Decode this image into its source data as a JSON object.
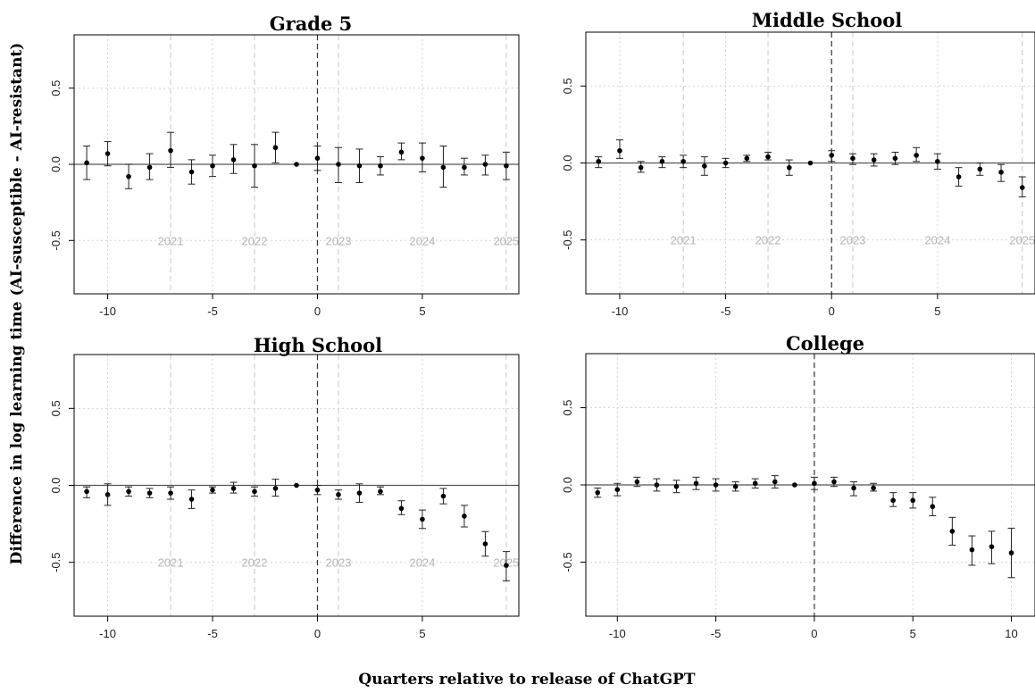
{
  "figure": {
    "ylabel": "Difference in log learning time (AI-susceptible - AI-resistant)",
    "xlabel": "Quarters relative to release of ChatGPT"
  },
  "chart_data": [
    {
      "type": "scatter",
      "title": "Grade 5",
      "xlim": [
        -11.6,
        9.6
      ],
      "ylim": [
        -0.85,
        0.85
      ],
      "x_ticks": [
        -10,
        -5,
        0,
        5
      ],
      "y_ticks": [
        -0.5,
        0.0,
        0.5
      ],
      "y_tick_labels": [
        "-0.5",
        "0.0",
        "0.5"
      ],
      "year_boundaries": [
        -7,
        -3,
        1,
        9
      ],
      "year_labels": [
        {
          "x": -7,
          "label": "2021"
        },
        {
          "x": -3,
          "label": "2022"
        },
        {
          "x": 1,
          "label": "2023"
        },
        {
          "x": 5,
          "label": "2024"
        },
        {
          "x": 9,
          "label": "2025"
        }
      ],
      "reference_line_x": 0,
      "grid": true,
      "points": [
        {
          "x": -11,
          "y": 0.01,
          "lo": -0.1,
          "hi": 0.12
        },
        {
          "x": -10,
          "y": 0.07,
          "lo": -0.01,
          "hi": 0.15
        },
        {
          "x": -9,
          "y": -0.08,
          "lo": -0.16,
          "hi": 0.0
        },
        {
          "x": -8,
          "y": -0.02,
          "lo": -0.1,
          "hi": 0.07
        },
        {
          "x": -7,
          "y": 0.09,
          "lo": -0.02,
          "hi": 0.21
        },
        {
          "x": -6,
          "y": -0.05,
          "lo": -0.13,
          "hi": 0.03
        },
        {
          "x": -5,
          "y": -0.01,
          "lo": -0.08,
          "hi": 0.06
        },
        {
          "x": -4,
          "y": 0.03,
          "lo": -0.06,
          "hi": 0.13
        },
        {
          "x": -3,
          "y": -0.01,
          "lo": -0.15,
          "hi": 0.13
        },
        {
          "x": -2,
          "y": 0.11,
          "lo": 0.01,
          "hi": 0.21
        },
        {
          "x": -1,
          "y": 0.0,
          "lo": 0.0,
          "hi": 0.0
        },
        {
          "x": 0,
          "y": 0.04,
          "lo": -0.04,
          "hi": 0.12
        },
        {
          "x": 1,
          "y": 0.0,
          "lo": -0.12,
          "hi": 0.11
        },
        {
          "x": 2,
          "y": -0.01,
          "lo": -0.12,
          "hi": 0.1
        },
        {
          "x": 3,
          "y": -0.01,
          "lo": -0.07,
          "hi": 0.05
        },
        {
          "x": 4,
          "y": 0.08,
          "lo": 0.03,
          "hi": 0.14
        },
        {
          "x": 5,
          "y": 0.04,
          "lo": -0.05,
          "hi": 0.14
        },
        {
          "x": 6,
          "y": -0.02,
          "lo": -0.15,
          "hi": 0.12
        },
        {
          "x": 7,
          "y": -0.02,
          "lo": -0.07,
          "hi": 0.04
        },
        {
          "x": 8,
          "y": 0.0,
          "lo": -0.07,
          "hi": 0.06
        },
        {
          "x": 9,
          "y": -0.01,
          "lo": -0.1,
          "hi": 0.08
        }
      ]
    },
    {
      "type": "scatter",
      "title": "Middle School",
      "xlim": [
        -11.6,
        9.6
      ],
      "ylim": [
        -0.85,
        0.85
      ],
      "x_ticks": [
        -10,
        -5,
        0,
        5
      ],
      "y_ticks": [
        -0.5,
        0.0,
        0.5
      ],
      "y_tick_labels": [
        "-0.5",
        "0.0",
        "0.5"
      ],
      "year_boundaries": [
        -7,
        -3,
        1,
        9
      ],
      "year_labels": [
        {
          "x": -7,
          "label": "2021"
        },
        {
          "x": -3,
          "label": "2022"
        },
        {
          "x": 1,
          "label": "2023"
        },
        {
          "x": 5,
          "label": "2024"
        },
        {
          "x": 9,
          "label": "2025"
        }
      ],
      "reference_line_x": 0,
      "grid": true,
      "points": [
        {
          "x": -11,
          "y": 0.01,
          "lo": -0.03,
          "hi": 0.04
        },
        {
          "x": -10,
          "y": 0.08,
          "lo": 0.03,
          "hi": 0.15
        },
        {
          "x": -9,
          "y": -0.03,
          "lo": -0.06,
          "hi": 0.01
        },
        {
          "x": -8,
          "y": 0.01,
          "lo": -0.03,
          "hi": 0.04
        },
        {
          "x": -7,
          "y": 0.01,
          "lo": -0.03,
          "hi": 0.05
        },
        {
          "x": -6,
          "y": -0.02,
          "lo": -0.08,
          "hi": 0.04
        },
        {
          "x": -5,
          "y": 0.0,
          "lo": -0.03,
          "hi": 0.03
        },
        {
          "x": -4,
          "y": 0.03,
          "lo": 0.01,
          "hi": 0.05
        },
        {
          "x": -3,
          "y": 0.04,
          "lo": 0.02,
          "hi": 0.07
        },
        {
          "x": -2,
          "y": -0.03,
          "lo": -0.08,
          "hi": 0.02
        },
        {
          "x": -1,
          "y": 0.0,
          "lo": 0.0,
          "hi": 0.0
        },
        {
          "x": 0,
          "y": 0.05,
          "lo": 0.01,
          "hi": 0.08
        },
        {
          "x": 1,
          "y": 0.03,
          "lo": -0.01,
          "hi": 0.06
        },
        {
          "x": 2,
          "y": 0.02,
          "lo": -0.02,
          "hi": 0.06
        },
        {
          "x": 3,
          "y": 0.03,
          "lo": -0.01,
          "hi": 0.07
        },
        {
          "x": 4,
          "y": 0.05,
          "lo": 0.01,
          "hi": 0.1
        },
        {
          "x": 5,
          "y": 0.01,
          "lo": -0.04,
          "hi": 0.06
        },
        {
          "x": 6,
          "y": -0.09,
          "lo": -0.15,
          "hi": -0.03
        },
        {
          "x": 7,
          "y": -0.04,
          "lo": -0.08,
          "hi": 0.0
        },
        {
          "x": 8,
          "y": -0.06,
          "lo": -0.12,
          "hi": -0.01
        },
        {
          "x": 9,
          "y": -0.16,
          "lo": -0.22,
          "hi": -0.09
        }
      ]
    },
    {
      "type": "scatter",
      "title": "High School",
      "xlim": [
        -11.6,
        9.6
      ],
      "ylim": [
        -0.85,
        0.85
      ],
      "x_ticks": [
        -10,
        -5,
        0,
        5
      ],
      "y_ticks": [
        -0.5,
        0.0,
        0.5
      ],
      "y_tick_labels": [
        "-0.5",
        "0.0",
        "0.5"
      ],
      "year_boundaries": [
        -7,
        -3,
        1,
        9
      ],
      "year_labels": [
        {
          "x": -7,
          "label": "2021"
        },
        {
          "x": -3,
          "label": "2022"
        },
        {
          "x": 1,
          "label": "2023"
        },
        {
          "x": 5,
          "label": "2024"
        },
        {
          "x": 9,
          "label": "2025"
        }
      ],
      "reference_line_x": 0,
      "grid": true,
      "points": [
        {
          "x": -11,
          "y": -0.04,
          "lo": -0.08,
          "hi": -0.01
        },
        {
          "x": -10,
          "y": -0.06,
          "lo": -0.13,
          "hi": 0.01
        },
        {
          "x": -9,
          "y": -0.04,
          "lo": -0.07,
          "hi": -0.01
        },
        {
          "x": -8,
          "y": -0.05,
          "lo": -0.08,
          "hi": -0.02
        },
        {
          "x": -7,
          "y": -0.05,
          "lo": -0.09,
          "hi": -0.01
        },
        {
          "x": -6,
          "y": -0.09,
          "lo": -0.15,
          "hi": -0.03
        },
        {
          "x": -5,
          "y": -0.03,
          "lo": -0.05,
          "hi": -0.01
        },
        {
          "x": -4,
          "y": -0.02,
          "lo": -0.05,
          "hi": 0.02
        },
        {
          "x": -3,
          "y": -0.04,
          "lo": -0.07,
          "hi": -0.01
        },
        {
          "x": -2,
          "y": -0.02,
          "lo": -0.07,
          "hi": 0.04
        },
        {
          "x": -1,
          "y": 0.0,
          "lo": 0.0,
          "hi": 0.0
        },
        {
          "x": 0,
          "y": -0.03,
          "lo": -0.06,
          "hi": 0.0
        },
        {
          "x": 1,
          "y": -0.06,
          "lo": -0.09,
          "hi": -0.03
        },
        {
          "x": 2,
          "y": -0.05,
          "lo": -0.11,
          "hi": 0.01
        },
        {
          "x": 3,
          "y": -0.04,
          "lo": -0.06,
          "hi": -0.01
        },
        {
          "x": 4,
          "y": -0.15,
          "lo": -0.19,
          "hi": -0.1
        },
        {
          "x": 5,
          "y": -0.22,
          "lo": -0.28,
          "hi": -0.16
        },
        {
          "x": 6,
          "y": -0.07,
          "lo": -0.12,
          "hi": -0.02
        },
        {
          "x": 7,
          "y": -0.2,
          "lo": -0.27,
          "hi": -0.13
        },
        {
          "x": 8,
          "y": -0.38,
          "lo": -0.46,
          "hi": -0.3
        },
        {
          "x": 9,
          "y": -0.52,
          "lo": -0.62,
          "hi": -0.43
        }
      ]
    },
    {
      "type": "scatter",
      "title": "College",
      "xlim": [
        -11.6,
        11.2
      ],
      "ylim": [
        -0.85,
        0.85
      ],
      "x_ticks": [
        -10,
        -5,
        0,
        5,
        10
      ],
      "y_ticks": [
        -0.5,
        0.0,
        0.5
      ],
      "y_tick_labels": [
        "-0.5",
        "0.0",
        "0.5"
      ],
      "year_boundaries": [],
      "year_labels": [],
      "reference_line_x": 0,
      "grid": true,
      "points": [
        {
          "x": -11,
          "y": -0.05,
          "lo": -0.08,
          "hi": -0.02
        },
        {
          "x": -10,
          "y": -0.03,
          "lo": -0.07,
          "hi": 0.01
        },
        {
          "x": -9,
          "y": 0.02,
          "lo": -0.01,
          "hi": 0.05
        },
        {
          "x": -8,
          "y": 0.0,
          "lo": -0.04,
          "hi": 0.04
        },
        {
          "x": -7,
          "y": -0.01,
          "lo": -0.05,
          "hi": 0.03
        },
        {
          "x": -6,
          "y": 0.01,
          "lo": -0.03,
          "hi": 0.05
        },
        {
          "x": -5,
          "y": 0.0,
          "lo": -0.04,
          "hi": 0.04
        },
        {
          "x": -4,
          "y": -0.01,
          "lo": -0.04,
          "hi": 0.02
        },
        {
          "x": -3,
          "y": 0.01,
          "lo": -0.02,
          "hi": 0.04
        },
        {
          "x": -2,
          "y": 0.02,
          "lo": -0.02,
          "hi": 0.06
        },
        {
          "x": -1,
          "y": 0.0,
          "lo": 0.0,
          "hi": 0.0
        },
        {
          "x": 0,
          "y": 0.01,
          "lo": -0.03,
          "hi": 0.05
        },
        {
          "x": 1,
          "y": 0.02,
          "lo": -0.01,
          "hi": 0.05
        },
        {
          "x": 2,
          "y": -0.02,
          "lo": -0.07,
          "hi": 0.02
        },
        {
          "x": 3,
          "y": -0.02,
          "lo": -0.04,
          "hi": 0.01
        },
        {
          "x": 4,
          "y": -0.1,
          "lo": -0.14,
          "hi": -0.05
        },
        {
          "x": 5,
          "y": -0.1,
          "lo": -0.15,
          "hi": -0.05
        },
        {
          "x": 6,
          "y": -0.14,
          "lo": -0.2,
          "hi": -0.08
        },
        {
          "x": 7,
          "y": -0.3,
          "lo": -0.39,
          "hi": -0.21
        },
        {
          "x": 8,
          "y": -0.42,
          "lo": -0.52,
          "hi": -0.33
        },
        {
          "x": 9,
          "y": -0.4,
          "lo": -0.51,
          "hi": -0.3
        },
        {
          "x": 10,
          "y": -0.44,
          "lo": -0.6,
          "hi": -0.28
        }
      ]
    }
  ]
}
